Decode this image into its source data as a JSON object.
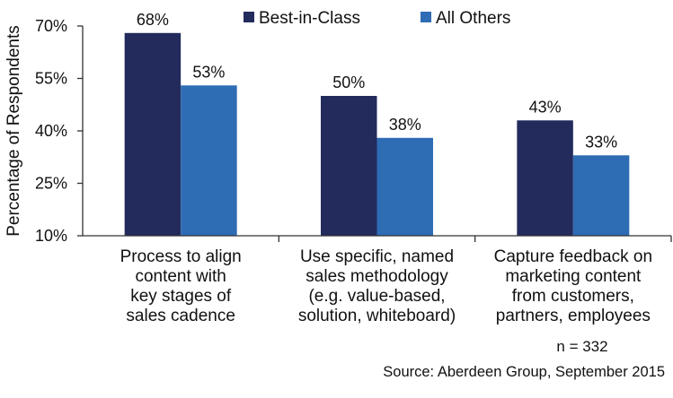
{
  "chart_data": {
    "type": "bar",
    "categories": [
      [
        "Process to align",
        "content with",
        "key stages of",
        "sales cadence"
      ],
      [
        "Use specific, named",
        "sales methodology",
        "(e.g. value-based,",
        "solution, whiteboard)"
      ],
      [
        "Capture feedback on",
        "marketing content",
        "from customers,",
        "partners, employees"
      ]
    ],
    "series": [
      {
        "name": "Best-in-Class",
        "values": [
          68,
          50,
          43
        ],
        "labels": [
          "68%",
          "50%",
          "43%"
        ],
        "color": "#232B5D"
      },
      {
        "name": "All Others",
        "values": [
          53,
          38,
          33
        ],
        "labels": [
          "53%",
          "38%",
          "33%"
        ],
        "color": "#2E6CB4"
      }
    ],
    "ylabel": "Percentage of Respondents",
    "ylim": [
      10,
      70
    ],
    "yticks": [
      10,
      25,
      40,
      55,
      70
    ],
    "ytick_labels": [
      "10%",
      "25%",
      "40%",
      "55%",
      "70%"
    ],
    "grid": false,
    "legend": "top"
  },
  "footer": {
    "note": "n = 332",
    "source": "Source: Aberdeen Group, September 2015"
  }
}
